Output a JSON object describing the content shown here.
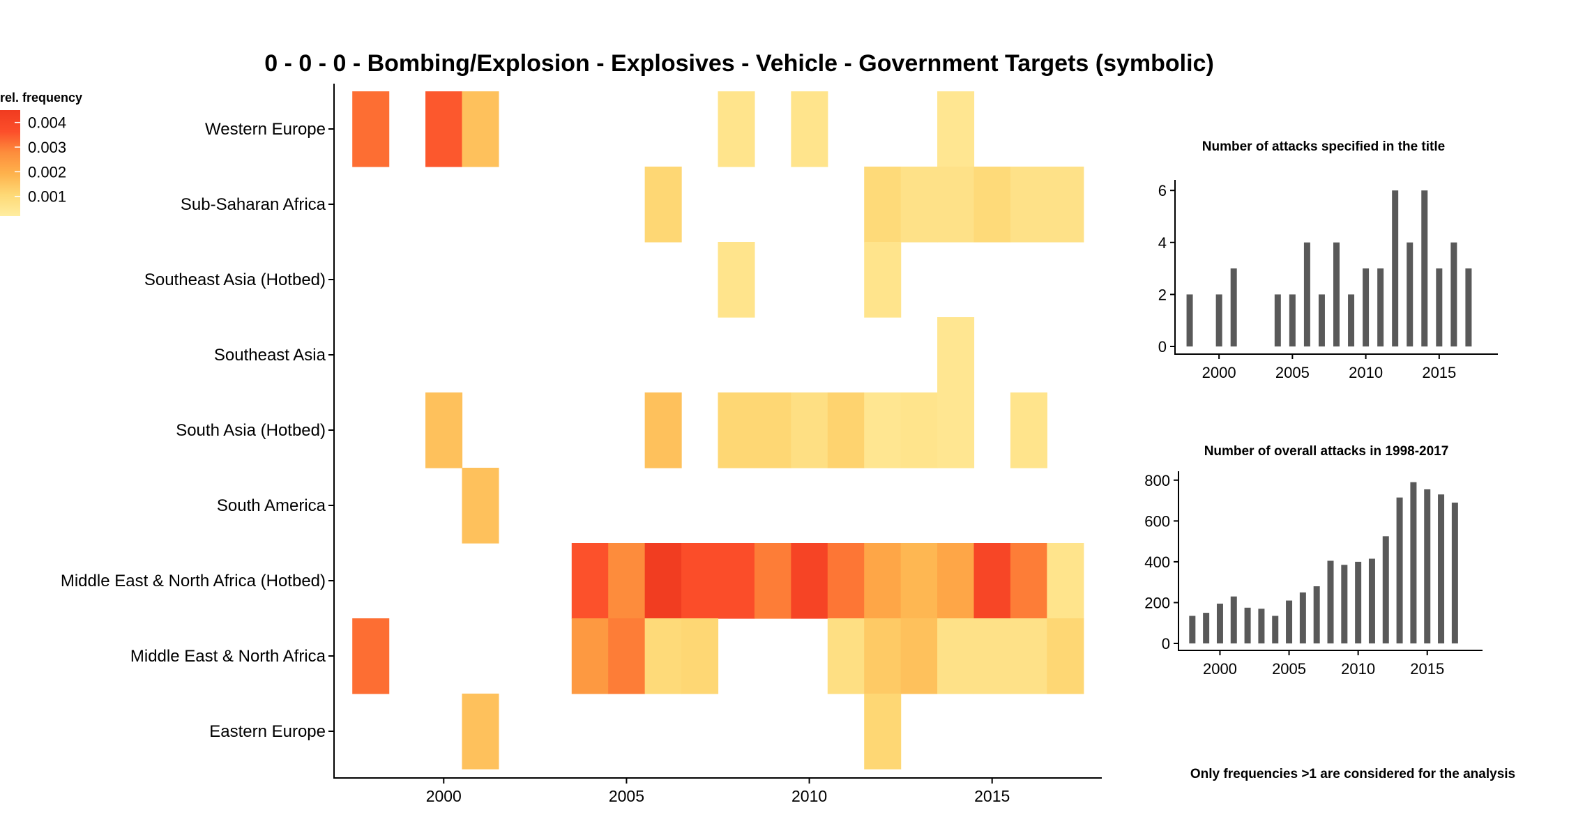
{
  "chart_data": [
    {
      "type": "heatmap",
      "title": "0 - 0 - 0 - Bombing/Explosion - Explosives - Vehicle - Government Targets (symbolic)",
      "x_ticks": [
        2000,
        2005,
        2010,
        2015
      ],
      "xlim": [
        1997,
        2018
      ],
      "regions": [
        "Western Europe",
        "Sub-Saharan Africa",
        "Southeast Asia (Hotbed)",
        "Southeast Asia",
        "South Asia (Hotbed)",
        "South America",
        "Middle East & North Africa (Hotbed)",
        "Middle East & North Africa",
        "Eastern Europe"
      ],
      "legend": {
        "title": "rel. frequency",
        "labels": [
          "0.004",
          "0.003",
          "0.002",
          "0.001"
        ],
        "ticks": [
          0.004,
          0.003,
          0.002,
          0.001
        ],
        "min": 0.0002,
        "max": 0.0045,
        "colors": [
          "#ffeda0",
          "#fed976",
          "#feb24c",
          "#fd8d3c",
          "#fc4e2a",
          "#f03b20"
        ]
      },
      "cells": [
        {
          "region": "Western Europe",
          "year": 1998,
          "value": 0.0032
        },
        {
          "region": "Western Europe",
          "year": 2000,
          "value": 0.0035
        },
        {
          "region": "Western Europe",
          "year": 2001,
          "value": 0.0016
        },
        {
          "region": "Western Europe",
          "year": 2008,
          "value": 0.0006
        },
        {
          "region": "Western Europe",
          "year": 2010,
          "value": 0.0006
        },
        {
          "region": "Western Europe",
          "year": 2014,
          "value": 0.0005
        },
        {
          "region": "Sub-Saharan Africa",
          "year": 2006,
          "value": 0.0011
        },
        {
          "region": "Sub-Saharan Africa",
          "year": 2012,
          "value": 0.001
        },
        {
          "region": "Sub-Saharan Africa",
          "year": 2013,
          "value": 0.0007
        },
        {
          "region": "Sub-Saharan Africa",
          "year": 2014,
          "value": 0.0007
        },
        {
          "region": "Sub-Saharan Africa",
          "year": 2015,
          "value": 0.001
        },
        {
          "region": "Sub-Saharan Africa",
          "year": 2016,
          "value": 0.0007
        },
        {
          "region": "Sub-Saharan Africa",
          "year": 2017,
          "value": 0.0007
        },
        {
          "region": "Southeast Asia (Hotbed)",
          "year": 2008,
          "value": 0.0006
        },
        {
          "region": "Southeast Asia (Hotbed)",
          "year": 2012,
          "value": 0.0006
        },
        {
          "region": "Southeast Asia",
          "year": 2014,
          "value": 0.0005
        },
        {
          "region": "South Asia (Hotbed)",
          "year": 2000,
          "value": 0.0016
        },
        {
          "region": "South Asia (Hotbed)",
          "year": 2006,
          "value": 0.0016
        },
        {
          "region": "South Asia (Hotbed)",
          "year": 2008,
          "value": 0.0011
        },
        {
          "region": "South Asia (Hotbed)",
          "year": 2009,
          "value": 0.0011
        },
        {
          "region": "South Asia (Hotbed)",
          "year": 2010,
          "value": 0.0008
        },
        {
          "region": "South Asia (Hotbed)",
          "year": 2011,
          "value": 0.0012
        },
        {
          "region": "South Asia (Hotbed)",
          "year": 2012,
          "value": 0.0005
        },
        {
          "region": "South Asia (Hotbed)",
          "year": 2013,
          "value": 0.0006
        },
        {
          "region": "South Asia (Hotbed)",
          "year": 2014,
          "value": 0.0005
        },
        {
          "region": "South Asia (Hotbed)",
          "year": 2016,
          "value": 0.0006
        },
        {
          "region": "South America",
          "year": 2001,
          "value": 0.0016
        },
        {
          "region": "Middle East & North Africa (Hotbed)",
          "year": 2004,
          "value": 0.0036
        },
        {
          "region": "Middle East & North Africa (Hotbed)",
          "year": 2005,
          "value": 0.0028
        },
        {
          "region": "Middle East & North Africa (Hotbed)",
          "year": 2006,
          "value": 0.0044
        },
        {
          "region": "Middle East & North Africa (Hotbed)",
          "year": 2007,
          "value": 0.0037
        },
        {
          "region": "Middle East & North Africa (Hotbed)",
          "year": 2008,
          "value": 0.0037
        },
        {
          "region": "Middle East & North Africa (Hotbed)",
          "year": 2009,
          "value": 0.003
        },
        {
          "region": "Middle East & North Africa (Hotbed)",
          "year": 2010,
          "value": 0.0041
        },
        {
          "region": "Middle East & North Africa (Hotbed)",
          "year": 2011,
          "value": 0.0031
        },
        {
          "region": "Middle East & North Africa (Hotbed)",
          "year": 2012,
          "value": 0.0022
        },
        {
          "region": "Middle East & North Africa (Hotbed)",
          "year": 2013,
          "value": 0.0018
        },
        {
          "region": "Middle East & North Africa (Hotbed)",
          "year": 2014,
          "value": 0.0022
        },
        {
          "region": "Middle East & North Africa (Hotbed)",
          "year": 2015,
          "value": 0.004
        },
        {
          "region": "Middle East & North Africa (Hotbed)",
          "year": 2016,
          "value": 0.003
        },
        {
          "region": "Middle East & North Africa (Hotbed)",
          "year": 2017,
          "value": 0.0006
        },
        {
          "region": "Middle East & North Africa",
          "year": 1998,
          "value": 0.0032
        },
        {
          "region": "Middle East & North Africa",
          "year": 2004,
          "value": 0.0025
        },
        {
          "region": "Middle East & North Africa",
          "year": 2005,
          "value": 0.003
        },
        {
          "region": "Middle East & North Africa",
          "year": 2006,
          "value": 0.001
        },
        {
          "region": "Middle East & North Africa",
          "year": 2007,
          "value": 0.0011
        },
        {
          "region": "Middle East & North Africa",
          "year": 2011,
          "value": 0.0008
        },
        {
          "region": "Middle East & North Africa",
          "year": 2012,
          "value": 0.0014
        },
        {
          "region": "Middle East & North Africa",
          "year": 2013,
          "value": 0.0016
        },
        {
          "region": "Middle East & North Africa",
          "year": 2014,
          "value": 0.0007
        },
        {
          "region": "Middle East & North Africa",
          "year": 2015,
          "value": 0.0007
        },
        {
          "region": "Middle East & North Africa",
          "year": 2016,
          "value": 0.0007
        },
        {
          "region": "Middle East & North Africa",
          "year": 2017,
          "value": 0.0011
        },
        {
          "region": "Eastern Europe",
          "year": 2001,
          "value": 0.0016
        },
        {
          "region": "Eastern Europe",
          "year": 2012,
          "value": 0.0011
        }
      ]
    },
    {
      "type": "bar",
      "title": "Number of attacks specified in the title",
      "x": [
        1998,
        2000,
        2001,
        2004,
        2005,
        2006,
        2007,
        2008,
        2009,
        2010,
        2011,
        2012,
        2013,
        2014,
        2015,
        2016,
        2017
      ],
      "values": [
        2,
        2,
        3,
        2,
        2,
        4,
        2,
        4,
        2,
        3,
        3,
        6,
        4,
        6,
        3,
        4,
        3
      ],
      "xlim": [
        1997,
        2019
      ],
      "ylim": [
        0,
        6.3
      ],
      "x_ticks": [
        2000,
        2005,
        2010,
        2015
      ],
      "y_ticks": [
        0,
        2,
        4,
        6
      ],
      "bar_color": "#595959"
    },
    {
      "type": "bar",
      "title": "Number of overall attacks in 1998-2017",
      "x": [
        1998,
        1999,
        2000,
        2001,
        2002,
        2003,
        2004,
        2005,
        2006,
        2007,
        2008,
        2009,
        2010,
        2011,
        2012,
        2013,
        2014,
        2015,
        2016,
        2017
      ],
      "values": [
        135,
        150,
        195,
        230,
        175,
        170,
        135,
        210,
        250,
        280,
        405,
        385,
        400,
        415,
        525,
        715,
        790,
        755,
        730,
        690
      ],
      "xlim": [
        1997,
        2019
      ],
      "ylim": [
        0,
        830
      ],
      "x_ticks": [
        2000,
        2005,
        2010,
        2015
      ],
      "y_ticks": [
        0,
        200,
        400,
        600,
        800
      ],
      "bar_color": "#595959"
    }
  ],
  "footnote": "Only frequencies >1 are considered for the analysis"
}
